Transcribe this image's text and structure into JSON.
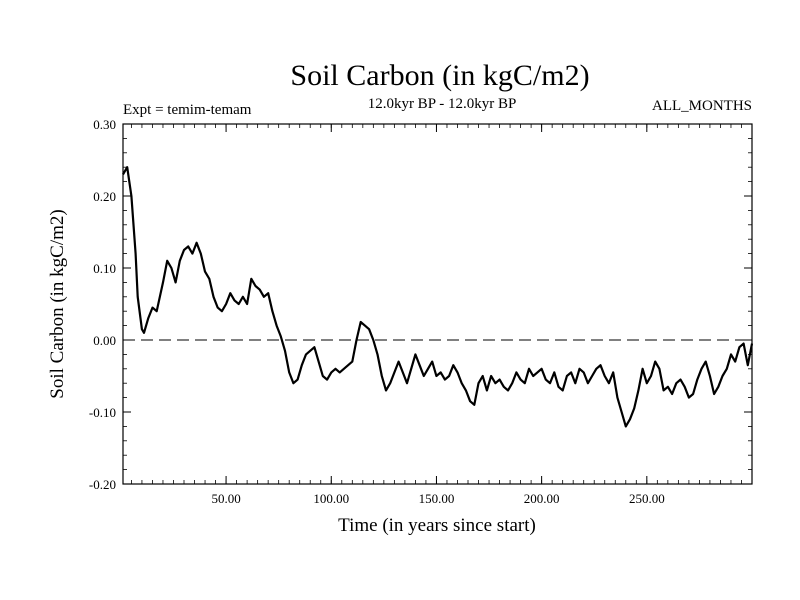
{
  "chart_data": {
    "type": "line",
    "title": "Soil Carbon (in kgC/m2)",
    "left_note": "Expt = temim-temam",
    "center_note": "12.0kyr BP - 12.0kyr BP",
    "right_note": "ALL_MONTHS",
    "xlabel": "Time (in years since start)",
    "ylabel": "Soil Carbon (in kgC/m2)",
    "xlim": [
      1,
      300
    ],
    "ylim": [
      -0.2,
      0.3
    ],
    "xticks": [
      50,
      100,
      150,
      200,
      250
    ],
    "xtick_labels": [
      "50.00",
      "100.00",
      "150.00",
      "200.00",
      "250.00"
    ],
    "yticks": [
      -0.2,
      -0.1,
      0.0,
      0.1,
      0.2,
      0.3
    ],
    "ytick_labels": [
      "-0.20",
      "-0.10",
      "0.00",
      "0.10",
      "0.20",
      "0.30"
    ],
    "reference_line": {
      "y": 0.0,
      "style": "dashed"
    },
    "grid": false,
    "series": [
      {
        "name": "Soil Carbon",
        "x": [
          1,
          3,
          5,
          7,
          8,
          10,
          11,
          13,
          15,
          17,
          20,
          22,
          24,
          26,
          28,
          30,
          32,
          34,
          36,
          38,
          40,
          42,
          44,
          46,
          48,
          50,
          52,
          54,
          56,
          58,
          60,
          62,
          64,
          66,
          68,
          70,
          72,
          74,
          76,
          78,
          80,
          82,
          84,
          86,
          88,
          90,
          92,
          94,
          96,
          98,
          100,
          102,
          104,
          106,
          108,
          110,
          112,
          114,
          116,
          118,
          120,
          122,
          124,
          126,
          128,
          130,
          132,
          134,
          136,
          138,
          140,
          142,
          144,
          146,
          148,
          150,
          152,
          154,
          156,
          158,
          160,
          162,
          164,
          166,
          168,
          170,
          172,
          174,
          176,
          178,
          180,
          182,
          184,
          186,
          188,
          190,
          192,
          194,
          196,
          198,
          200,
          202,
          204,
          206,
          208,
          210,
          212,
          214,
          216,
          218,
          220,
          222,
          224,
          226,
          228,
          230,
          232,
          234,
          236,
          238,
          240,
          242,
          244,
          246,
          248,
          250,
          252,
          254,
          256,
          258,
          260,
          262,
          264,
          266,
          268,
          270,
          272,
          274,
          276,
          278,
          280,
          282,
          284,
          286,
          288,
          290,
          292,
          294,
          296,
          298,
          300
        ],
        "values": [
          0.23,
          0.24,
          0.2,
          0.12,
          0.06,
          0.015,
          0.01,
          0.03,
          0.045,
          0.04,
          0.08,
          0.11,
          0.1,
          0.08,
          0.11,
          0.125,
          0.13,
          0.12,
          0.135,
          0.12,
          0.095,
          0.085,
          0.06,
          0.045,
          0.04,
          0.05,
          0.065,
          0.055,
          0.05,
          0.06,
          0.05,
          0.085,
          0.075,
          0.07,
          0.06,
          0.065,
          0.04,
          0.02,
          0.005,
          -0.015,
          -0.045,
          -0.06,
          -0.055,
          -0.035,
          -0.02,
          -0.015,
          -0.01,
          -0.03,
          -0.05,
          -0.055,
          -0.045,
          -0.04,
          -0.045,
          -0.04,
          -0.035,
          -0.03,
          0.0,
          0.025,
          0.02,
          0.015,
          0.0,
          -0.02,
          -0.05,
          -0.07,
          -0.06,
          -0.045,
          -0.03,
          -0.045,
          -0.06,
          -0.04,
          -0.02,
          -0.035,
          -0.05,
          -0.04,
          -0.03,
          -0.05,
          -0.045,
          -0.055,
          -0.05,
          -0.035,
          -0.045,
          -0.06,
          -0.07,
          -0.085,
          -0.09,
          -0.06,
          -0.05,
          -0.07,
          -0.05,
          -0.06,
          -0.055,
          -0.065,
          -0.07,
          -0.06,
          -0.045,
          -0.055,
          -0.06,
          -0.04,
          -0.05,
          -0.045,
          -0.04,
          -0.055,
          -0.06,
          -0.045,
          -0.065,
          -0.07,
          -0.05,
          -0.045,
          -0.06,
          -0.04,
          -0.045,
          -0.06,
          -0.05,
          -0.04,
          -0.035,
          -0.05,
          -0.06,
          -0.045,
          -0.08,
          -0.1,
          -0.12,
          -0.11,
          -0.095,
          -0.07,
          -0.04,
          -0.06,
          -0.05,
          -0.03,
          -0.04,
          -0.07,
          -0.065,
          -0.075,
          -0.06,
          -0.055,
          -0.065,
          -0.08,
          -0.075,
          -0.055,
          -0.04,
          -0.03,
          -0.05,
          -0.075,
          -0.065,
          -0.05,
          -0.04,
          -0.02,
          -0.03,
          -0.01,
          -0.005,
          -0.035,
          -0.005
        ]
      }
    ]
  }
}
